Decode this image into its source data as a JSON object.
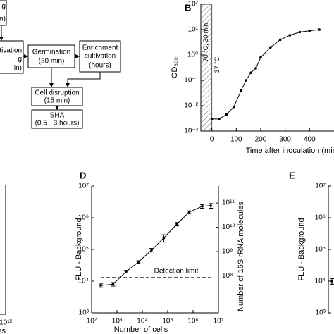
{
  "diagram": {
    "boxes": [
      {
        "lines": [
          "g",
          "n)"
        ]
      },
      {
        "lines": [
          "ultivation",
          "g",
          "in)"
        ]
      },
      {
        "lines": [
          "Germination",
          "(30 min)"
        ]
      },
      {
        "lines": [
          "Enrichment",
          "cultivation",
          "(hours)"
        ]
      },
      {
        "lines": [
          "Cell disruption",
          "(15 min)"
        ]
      },
      {
        "lines": [
          "SHA",
          "(0.5 - 3 hours)"
        ]
      }
    ]
  },
  "chart_data": [
    {
      "type": "line",
      "panel_label": "B",
      "ylabel": "OD₆₀₀",
      "xlabel": "Time after inoculation (min)",
      "x": [
        0,
        30,
        60,
        90,
        120,
        140,
        160,
        180,
        200,
        240,
        280,
        320,
        360,
        400,
        440
      ],
      "values": [
        0.003,
        0.003,
        0.0045,
        0.009,
        0.04,
        0.1,
        0.2,
        0.3,
        0.8,
        2,
        4,
        6,
        8,
        9,
        10
      ],
      "color": "#000000",
      "ylog": true,
      "ylim": [
        0.001,
        100
      ],
      "yticks": [
        {
          "value": 0.001,
          "label": "10⁻³"
        },
        {
          "value": 0.01,
          "label": "10⁻²"
        },
        {
          "value": 0.1,
          "label": "10⁻¹"
        },
        {
          "value": 1,
          "label": "10⁰"
        },
        {
          "value": 10,
          "label": "10¹"
        },
        {
          "value": 100,
          "label": "10²"
        }
      ],
      "xlim": [
        -45,
        500
      ],
      "xticks": [
        0,
        100,
        200,
        300,
        400
      ],
      "shaded_x": [
        -45,
        0
      ],
      "annotations": [
        "70 °C, 30 min",
        "37 °C"
      ]
    },
    {
      "type": "line",
      "panel_label": "D",
      "ylabel": "FLU - Background",
      "y2label": "Number of 16S rRNA molecules",
      "xlabel": "Number of cells",
      "x": [
        230,
        700,
        2300,
        7000,
        23000,
        70000,
        230000,
        700000,
        2300000,
        5000000
      ],
      "values": [
        7300,
        8000,
        20000,
        40000,
        95000,
        230000,
        630000,
        1500000,
        2300000,
        2400000
      ],
      "errors": [
        900,
        1000,
        2000,
        4000,
        12000,
        60000,
        80000,
        150000,
        300000,
        400000
      ],
      "color": "#000000",
      "xlog": true,
      "ylog": true,
      "xlim": [
        100,
        10000000
      ],
      "xticks": [
        {
          "value": 100,
          "label": "10²"
        },
        {
          "value": 1000,
          "label": "10³"
        },
        {
          "value": 10000,
          "label": "10⁴"
        },
        {
          "value": 100000,
          "label": "10⁵"
        },
        {
          "value": 1000000,
          "label": "10⁶"
        },
        {
          "value": 10000000,
          "label": "10⁷"
        }
      ],
      "ylim": [
        1000,
        10000000
      ],
      "yticks": [
        {
          "value": 1000,
          "label": "10³"
        },
        {
          "value": 10000,
          "label": "10⁴"
        },
        {
          "value": 100000,
          "label": "10⁵"
        },
        {
          "value": 1000000,
          "label": "10⁶"
        },
        {
          "value": 10000000,
          "label": "10⁷"
        }
      ],
      "y2lim": [
        3000000,
        500000000000
      ],
      "y2ticks": [
        {
          "value": 100000000,
          "label": "10⁸"
        },
        {
          "value": 1000000000,
          "label": "10⁹"
        },
        {
          "value": 10000000000,
          "label": "10¹⁰"
        },
        {
          "value": 100000000000,
          "label": "10¹¹"
        }
      ],
      "detection_limit": 13000,
      "detection_label": "Detection limit"
    },
    {
      "type": "line",
      "xlabel": "es",
      "xlog": true,
      "xlim": [
        100000000000,
        1000000000000
      ],
      "xticks": [
        {
          "value": 1000000000000,
          "label": "10¹²"
        }
      ]
    },
    {
      "type": "line",
      "panel_label": "E",
      "ylabel": "FLU - Background",
      "values": [
        10000
      ],
      "errors": [
        2000
      ],
      "color": "#000000",
      "ylog": true,
      "ylim": [
        1000,
        10000000
      ],
      "yticks": [
        {
          "value": 1000,
          "label": "10³"
        },
        {
          "value": 10000,
          "label": "10⁴"
        },
        {
          "value": 100000,
          "label": "10⁵"
        },
        {
          "value": 1000000,
          "label": "10⁶"
        },
        {
          "value": 10000000,
          "label": "10⁷"
        }
      ]
    }
  ]
}
